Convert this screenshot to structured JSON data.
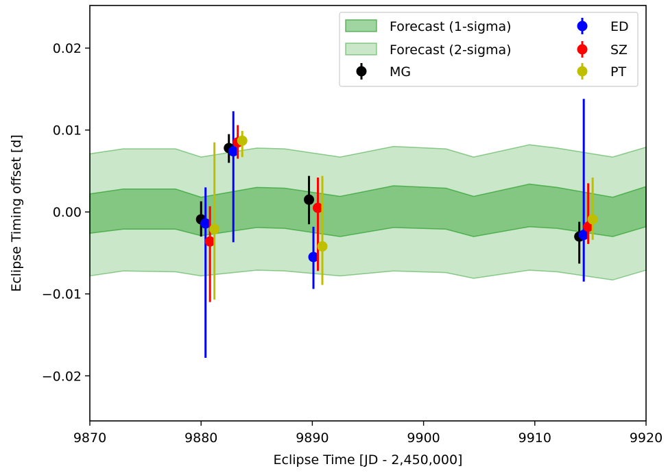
{
  "chart_data": {
    "type": "scatter",
    "xlabel": "Eclipse Time [JD - 2,450,000]",
    "ylabel": "Eclipse Timing offset [d]",
    "xlim": [
      9870,
      9920
    ],
    "ylim": [
      -0.0255,
      0.0252
    ],
    "xticks": [
      9870,
      9880,
      9890,
      9900,
      9910,
      9920
    ],
    "yticks": [
      -0.02,
      -0.01,
      0.0,
      0.01,
      0.02
    ],
    "xtick_labels": [
      "9870",
      "9880",
      "9890",
      "9900",
      "9910",
      "9920"
    ],
    "ytick_labels": [
      "−0.02",
      "−0.01",
      "0.00",
      "0.01",
      "0.02"
    ],
    "grid": false,
    "legend_position": "top-right",
    "bands": [
      {
        "name": "Forecast (2-sigma)",
        "color": "#2ca02c",
        "opacity": 0.25,
        "x": [
          9870,
          9873,
          9877.7,
          9880,
          9885.0,
          9887.5,
          9892.5,
          9897.3,
          9902.0,
          9904.5,
          9909.5,
          9912.0,
          9917.0,
          9920
        ],
        "upper": [
          0.0071,
          0.0077,
          0.0077,
          0.0067,
          0.0078,
          0.0077,
          0.0067,
          0.008,
          0.0077,
          0.0067,
          0.0082,
          0.0078,
          0.0067,
          0.0079
        ],
        "lower": [
          -0.0078,
          -0.0072,
          -0.0073,
          -0.0078,
          -0.0071,
          -0.0072,
          -0.0078,
          -0.0072,
          -0.0074,
          -0.0081,
          -0.0071,
          -0.0073,
          -0.0083,
          -0.0071
        ]
      },
      {
        "name": "Forecast (1-sigma)",
        "color": "#2ca02c",
        "opacity": 0.45,
        "x": [
          9870,
          9873,
          9877.7,
          9880,
          9885.0,
          9887.5,
          9892.5,
          9897.3,
          9902.0,
          9904.5,
          9909.5,
          9912.0,
          9917.0,
          9920
        ],
        "upper": [
          0.0022,
          0.0028,
          0.0028,
          0.0018,
          0.003,
          0.0029,
          0.0019,
          0.0032,
          0.0029,
          0.0019,
          0.0034,
          0.003,
          0.0018,
          0.0031
        ],
        "lower": [
          -0.0026,
          -0.0021,
          -0.0021,
          -0.0029,
          -0.0019,
          -0.002,
          -0.003,
          -0.0019,
          -0.0021,
          -0.003,
          -0.0018,
          -0.002,
          -0.003,
          -0.0018
        ]
      }
    ],
    "series": [
      {
        "name": "MG",
        "color": "#000000",
        "points": [
          {
            "x": 9880.0,
            "y": -0.0009,
            "ylo": -0.003,
            "yhi": 0.0013
          },
          {
            "x": 9882.5,
            "y": 0.0078,
            "ylo": 0.006,
            "yhi": 0.0095
          },
          {
            "x": 9889.7,
            "y": 0.0015,
            "ylo": -0.0015,
            "yhi": 0.0044
          },
          {
            "x": 9914.0,
            "y": -0.003,
            "ylo": -0.0063,
            "yhi": -0.0012
          }
        ]
      },
      {
        "name": "ED",
        "color": "#0000ff",
        "points": [
          {
            "x": 9880.4,
            "y": -0.0014,
            "ylo": -0.0178,
            "yhi": 0.003
          },
          {
            "x": 9882.9,
            "y": 0.0074,
            "ylo": -0.0037,
            "yhi": 0.0123
          },
          {
            "x": 9890.1,
            "y": -0.0055,
            "ylo": -0.0094,
            "yhi": -0.0018
          },
          {
            "x": 9914.4,
            "y": -0.0028,
            "ylo": -0.0085,
            "yhi": 0.0138
          }
        ]
      },
      {
        "name": "SZ",
        "color": "#ff0000",
        "points": [
          {
            "x": 9880.8,
            "y": -0.0036,
            "ylo": -0.011,
            "yhi": 0.0007
          },
          {
            "x": 9883.3,
            "y": 0.0085,
            "ylo": 0.0065,
            "yhi": 0.0106
          },
          {
            "x": 9890.5,
            "y": 0.0005,
            "ylo": -0.0072,
            "yhi": 0.0042
          },
          {
            "x": 9914.8,
            "y": -0.0018,
            "ylo": -0.0039,
            "yhi": 0.0035
          }
        ]
      },
      {
        "name": "PT",
        "color": "#bfbf00",
        "points": [
          {
            "x": 9881.2,
            "y": -0.0021,
            "ylo": -0.0107,
            "yhi": 0.0085
          },
          {
            "x": 9883.7,
            "y": 0.0087,
            "ylo": 0.0067,
            "yhi": 0.0099
          },
          {
            "x": 9890.9,
            "y": -0.0042,
            "ylo": -0.0089,
            "yhi": 0.0044
          },
          {
            "x": 9915.2,
            "y": -0.0009,
            "ylo": -0.0034,
            "yhi": 0.0042
          }
        ]
      }
    ]
  }
}
